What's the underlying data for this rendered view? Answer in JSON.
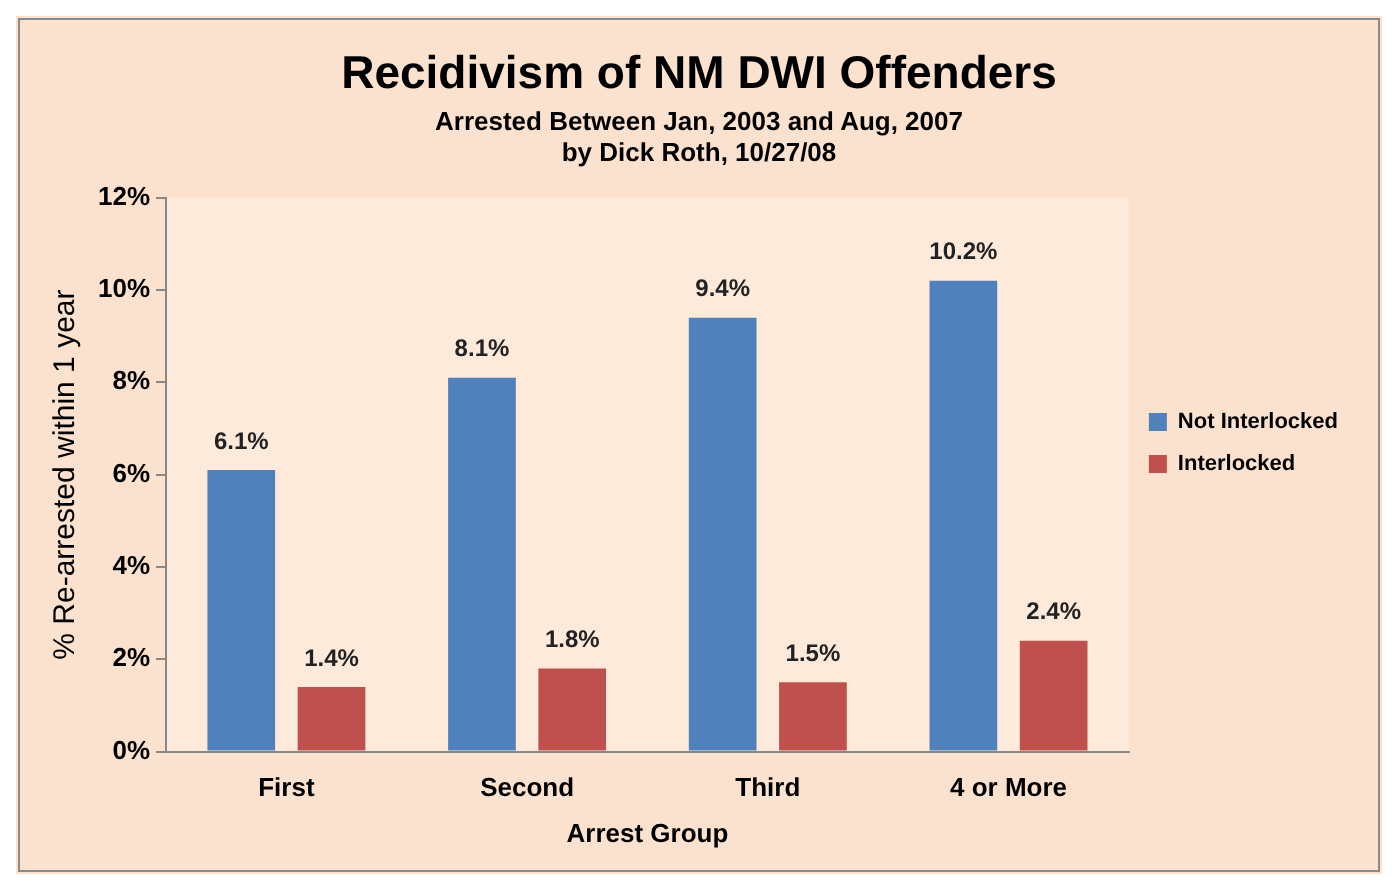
{
  "chart_data": {
    "type": "bar",
    "title": "Recidivism of NM DWI Offenders",
    "subtitle": "Arrested Between Jan, 2003 and Aug, 2007\nby Dick Roth, 10/27/08",
    "xlabel": "Arrest Group",
    "ylabel": "% Re-arrested within 1 year",
    "categories": [
      "First",
      "Second",
      "Third",
      "4 or More"
    ],
    "series": [
      {
        "name": "Not Interlocked",
        "color": "#4f81bd",
        "values": [
          6.1,
          8.1,
          9.4,
          10.2
        ],
        "value_labels": [
          "6.1%",
          "8.1%",
          "9.4%",
          "10.2%"
        ]
      },
      {
        "name": "Interlocked",
        "color": "#c0504d",
        "values": [
          1.4,
          1.8,
          1.5,
          2.4
        ],
        "value_labels": [
          "1.4%",
          "1.8%",
          "1.5%",
          "2.4%"
        ]
      }
    ],
    "ylim": [
      0,
      12
    ],
    "yticks": [
      {
        "value": 0,
        "label": "0%"
      },
      {
        "value": 2,
        "label": "2%"
      },
      {
        "value": 4,
        "label": "4%"
      },
      {
        "value": 6,
        "label": "6%"
      },
      {
        "value": 8,
        "label": "8%"
      },
      {
        "value": 10,
        "label": "10%"
      },
      {
        "value": 12,
        "label": "12%"
      }
    ],
    "grid": false,
    "legend": "right"
  }
}
